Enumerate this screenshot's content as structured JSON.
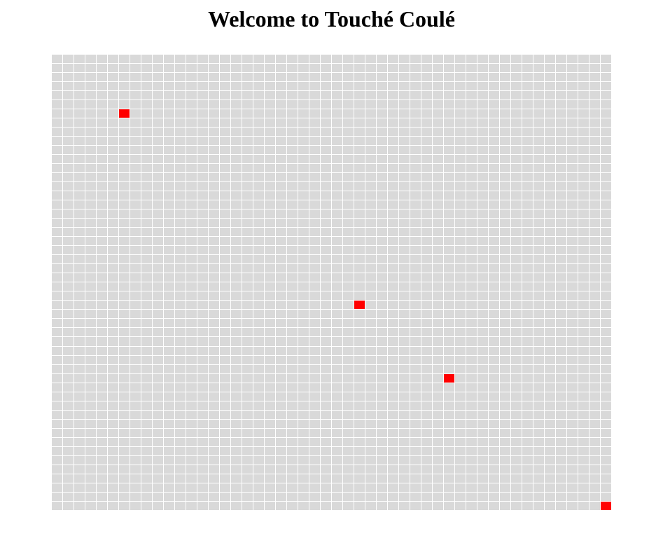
{
  "title": "Welcome to Touché Coulé",
  "board": {
    "rows": 50,
    "cols": 50,
    "hits": [
      {
        "row": 6,
        "col": 6
      },
      {
        "row": 27,
        "col": 27
      },
      {
        "row": 35,
        "col": 35
      },
      {
        "row": 49,
        "col": 49
      }
    ]
  },
  "colors": {
    "water": "#d9d9d9",
    "hit": "#ff0000",
    "grid_line": "#ffffff"
  }
}
